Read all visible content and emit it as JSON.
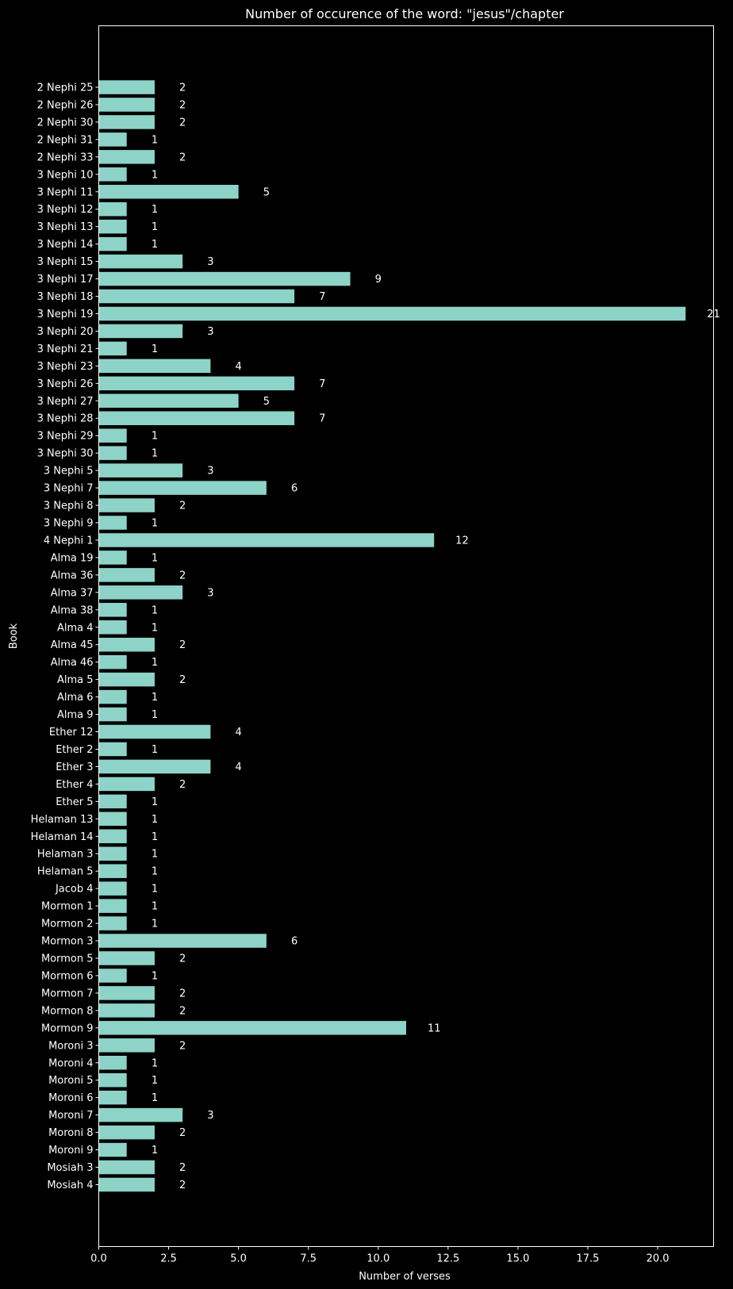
{
  "chart_data": {
    "type": "bar",
    "orientation": "horizontal",
    "title": "Number of occurence of the word: \"jesus\"/chapter",
    "xlabel": "Number of verses",
    "ylabel": "Book",
    "xlim": [
      0,
      22
    ],
    "xticks": [
      0.0,
      2.5,
      5.0,
      7.5,
      10.0,
      12.5,
      15.0,
      17.5,
      20.0
    ],
    "xtick_labels": [
      "0.0",
      "2.5",
      "5.0",
      "7.5",
      "10.0",
      "12.5",
      "15.0",
      "17.5",
      "20.0"
    ],
    "grid": false,
    "bar_color": "#8dd3c7",
    "background": "#000000",
    "text_color": "#ffffff",
    "categories": [
      "2 Nephi 25",
      "2 Nephi 26",
      "2 Nephi 30",
      "2 Nephi 31",
      "2 Nephi 33",
      "3 Nephi 10",
      "3 Nephi 11",
      "3 Nephi 12",
      "3 Nephi 13",
      "3 Nephi 14",
      "3 Nephi 15",
      "3 Nephi 17",
      "3 Nephi 18",
      "3 Nephi 19",
      "3 Nephi 20",
      "3 Nephi 21",
      "3 Nephi 23",
      "3 Nephi 26",
      "3 Nephi 27",
      "3 Nephi 28",
      "3 Nephi 29",
      "3 Nephi 30",
      "3 Nephi 5",
      "3 Nephi 7",
      "3 Nephi 8",
      "3 Nephi 9",
      "4 Nephi 1",
      "Alma 19",
      "Alma 36",
      "Alma 37",
      "Alma 38",
      "Alma 4",
      "Alma 45",
      "Alma 46",
      "Alma 5",
      "Alma 6",
      "Alma 9",
      "Ether 12",
      "Ether 2",
      "Ether 3",
      "Ether 4",
      "Ether 5",
      "Helaman 13",
      "Helaman 14",
      "Helaman 3",
      "Helaman 5",
      "Jacob 4",
      "Mormon 1",
      "Mormon 2",
      "Mormon 3",
      "Mormon 5",
      "Mormon 6",
      "Mormon 7",
      "Mormon 8",
      "Mormon 9",
      "Moroni 3",
      "Moroni 4",
      "Moroni 5",
      "Moroni 6",
      "Moroni 7",
      "Moroni 8",
      "Moroni 9",
      "Mosiah 3",
      "Mosiah 4"
    ],
    "values": [
      2,
      2,
      2,
      1,
      2,
      1,
      5,
      1,
      1,
      1,
      3,
      9,
      7,
      21,
      3,
      1,
      4,
      7,
      5,
      7,
      1,
      1,
      3,
      6,
      2,
      1,
      12,
      1,
      2,
      3,
      1,
      1,
      2,
      1,
      2,
      1,
      1,
      4,
      1,
      4,
      2,
      1,
      1,
      1,
      1,
      1,
      1,
      1,
      1,
      6,
      2,
      1,
      2,
      2,
      11,
      2,
      1,
      1,
      1,
      3,
      2,
      1,
      2,
      2
    ]
  }
}
